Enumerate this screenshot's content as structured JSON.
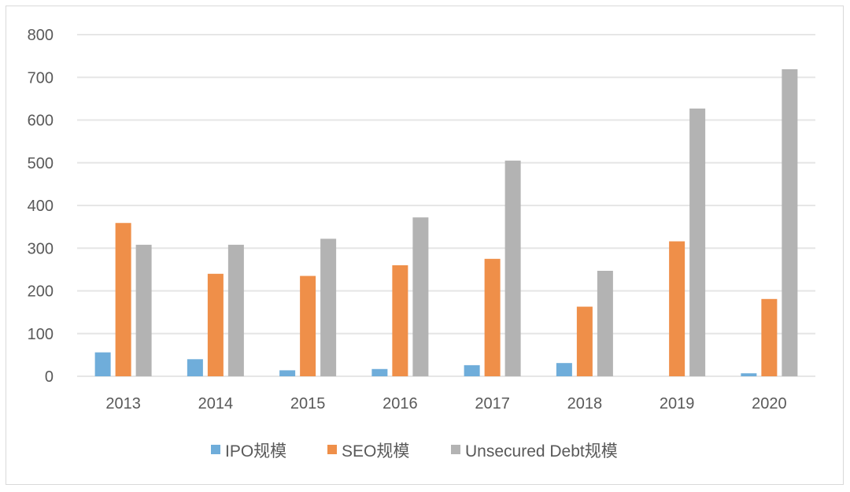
{
  "chart_data": {
    "type": "bar",
    "categories": [
      "2013",
      "2014",
      "2015",
      "2016",
      "2017",
      "2018",
      "2019",
      "2020"
    ],
    "series": [
      {
        "name": "IPO规模",
        "color": "#6fadda",
        "values": [
          56,
          40,
          14,
          17,
          26,
          31,
          0,
          7
        ]
      },
      {
        "name": "SEO规模",
        "color": "#ef8f49",
        "values": [
          359,
          240,
          235,
          260,
          275,
          163,
          316,
          181
        ]
      },
      {
        "name": "Unsecured Debt规模",
        "color": "#b3b3b3",
        "values": [
          308,
          308,
          322,
          372,
          505,
          247,
          627,
          719
        ]
      }
    ],
    "yticks": [
      "0",
      "100",
      "200",
      "300",
      "400",
      "500",
      "600",
      "700",
      "800"
    ],
    "ylim": [
      0,
      800
    ],
    "grid": true,
    "legend_position": "bottom",
    "title": "",
    "xlabel": "",
    "ylabel": ""
  }
}
